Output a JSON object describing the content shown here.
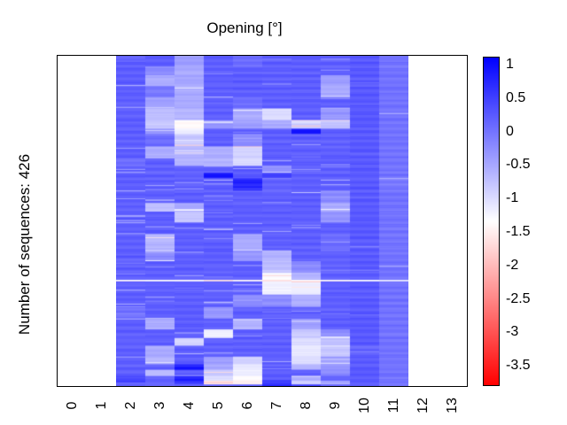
{
  "figure": {
    "background": "#ffffff"
  },
  "chart_data": {
    "type": "heatmap",
    "title": "Opening [°]",
    "ylabel": "Number of sequences: 426",
    "n_sequences": 426,
    "x_ticks": [
      "0",
      "1",
      "2",
      "3",
      "4",
      "5",
      "6",
      "7",
      "8",
      "9",
      "10",
      "11",
      "12",
      "13"
    ],
    "n_cols": 14,
    "data_col_start": 2,
    "data_col_count": 10,
    "grid": false,
    "legend_position": "right-colorbar",
    "colorbar": {
      "tick_labels": [
        "1",
        "0.5",
        "0",
        "-0.5",
        "-1",
        "-1.5",
        "-2",
        "-2.5",
        "-3",
        "-3.5"
      ],
      "tick_values": [
        1,
        0.5,
        0,
        -0.5,
        -1,
        -1.5,
        -2,
        -2.5,
        -3,
        -3.5
      ],
      "vmax": 1.1,
      "vmin": -3.79,
      "color_high": "#0000ff",
      "color_mid": "#ffffff",
      "color_low": "#ff0000"
    },
    "bands_note": "Downsampled heatmap values; each band = [row_count, values for columns 2..11] on the colorbar scale. Row counts sum to 426.",
    "bands": [
      [
        14,
        0.25,
        0.25,
        -0.4,
        0.25,
        0.1,
        0.25,
        0.25,
        0.25,
        0.3,
        0.05
      ],
      [
        11,
        0.25,
        -0.2,
        -0.5,
        0.25,
        0.25,
        0.25,
        0.25,
        0.25,
        0.3,
        0.05
      ],
      [
        14,
        0.25,
        -0.5,
        -0.45,
        0.25,
        0.25,
        0.25,
        0.25,
        -0.4,
        0.3,
        0.05
      ],
      [
        15,
        0.25,
        0.0,
        -0.5,
        0.25,
        0.25,
        0.25,
        0.25,
        -0.5,
        0.3,
        0.05
      ],
      [
        14,
        0.25,
        -0.4,
        -0.5,
        0.25,
        0.1,
        0.25,
        0.25,
        0.25,
        0.3,
        0.05
      ],
      [
        15,
        0.25,
        -0.7,
        -0.6,
        0.25,
        -0.5,
        -1.0,
        0.25,
        -0.3,
        0.3,
        0.05
      ],
      [
        11,
        0.25,
        -0.8,
        -1.4,
        -0.3,
        -0.4,
        -0.5,
        -0.8,
        -0.7,
        0.3,
        0.05
      ],
      [
        7,
        0.25,
        -0.3,
        -1.2,
        0.25,
        0.25,
        0.25,
        0.95,
        0.25,
        0.3,
        0.05
      ],
      [
        16,
        0.25,
        0.1,
        -0.8,
        0.25,
        -0.2,
        0.25,
        0.25,
        0.25,
        0.3,
        0.05
      ],
      [
        15,
        0.25,
        -0.5,
        -0.6,
        -0.55,
        -0.9,
        0.25,
        0.25,
        0.25,
        0.3,
        0.05
      ],
      [
        10,
        0.1,
        0.25,
        -0.6,
        -0.6,
        -1.0,
        0.25,
        0.25,
        0.25,
        0.3,
        0.05
      ],
      [
        9,
        0.25,
        0.25,
        0.2,
        0.25,
        0.3,
        -0.3,
        0.25,
        0.25,
        0.3,
        0.05
      ],
      [
        7,
        0.25,
        0.25,
        0.25,
        0.95,
        0.3,
        0.5,
        0.25,
        0.25,
        0.3,
        0.05
      ],
      [
        16,
        0.25,
        0.25,
        0.25,
        0.25,
        0.8,
        0.2,
        0.25,
        0.25,
        0.3,
        0.0
      ],
      [
        16,
        0.25,
        0.25,
        0.25,
        0.25,
        0.25,
        0.25,
        0.25,
        -0.2,
        0.3,
        0.05
      ],
      [
        11,
        0.25,
        -0.7,
        -0.5,
        0.25,
        0.25,
        0.25,
        0.25,
        -0.5,
        0.3,
        0.05
      ],
      [
        14,
        0.25,
        0.25,
        -0.8,
        0.25,
        0.25,
        0.25,
        0.25,
        -0.3,
        0.3,
        0.05
      ],
      [
        15,
        0.25,
        0.25,
        0.25,
        0.25,
        0.25,
        0.25,
        0.25,
        0.25,
        0.3,
        0.05
      ],
      [
        21,
        0.25,
        -0.6,
        0.25,
        0.25,
        -0.5,
        0.25,
        0.25,
        0.1,
        0.3,
        0.05
      ],
      [
        14,
        0.25,
        -0.2,
        0.25,
        0.25,
        -0.3,
        -0.6,
        0.25,
        0.25,
        0.3,
        0.05
      ],
      [
        15,
        0.25,
        0.25,
        0.25,
        0.25,
        0.25,
        -0.7,
        -0.2,
        0.25,
        0.3,
        0.05
      ],
      [
        9,
        0.25,
        0.25,
        0.25,
        0.25,
        0.25,
        -1.3,
        -0.6,
        0.25,
        0.3,
        0.05
      ],
      [
        2,
        -1.4,
        -1.4,
        -1.4,
        -1.6,
        -1.4,
        -1.7,
        -1.4,
        -1.4,
        -1.3,
        -1.2
      ],
      [
        17,
        0.25,
        0.25,
        0.25,
        0.25,
        0.25,
        -1.2,
        -1.2,
        0.25,
        0.3,
        0.05
      ],
      [
        16,
        0.25,
        0.25,
        0.25,
        0.25,
        -0.2,
        -0.2,
        -0.55,
        0.25,
        0.3,
        0.05
      ],
      [
        15,
        0.1,
        0.25,
        0.25,
        -0.3,
        0.25,
        0.25,
        0.25,
        0.25,
        0.3,
        0.05
      ],
      [
        14,
        0.25,
        -0.5,
        0.25,
        0.25,
        -0.6,
        0.25,
        -0.4,
        0.25,
        0.3,
        0.05
      ],
      [
        11,
        0.25,
        0.25,
        0.25,
        -1.2,
        0.25,
        0.25,
        -0.8,
        -0.2,
        0.3,
        0.05
      ],
      [
        10,
        0.25,
        0.25,
        -0.9,
        0.25,
        0.25,
        0.25,
        -1.0,
        -0.7,
        0.3,
        0.05
      ],
      [
        14,
        0.25,
        -0.5,
        0.25,
        0.25,
        0.25,
        0.25,
        -1.1,
        -0.8,
        0.2,
        0.05
      ],
      [
        10,
        0.25,
        -0.6,
        0.25,
        -0.4,
        -0.9,
        0.25,
        -1.0,
        -0.4,
        0.3,
        0.05
      ],
      [
        7,
        0.25,
        0.25,
        0.9,
        -0.5,
        -1.1,
        0.25,
        -0.6,
        -0.3,
        0.3,
        0.05
      ],
      [
        8,
        0.25,
        -0.7,
        0.3,
        -0.8,
        -1.2,
        0.25,
        0.25,
        -0.2,
        0.3,
        0.05
      ],
      [
        6,
        0.5,
        0.25,
        0.9,
        -1.0,
        -1.4,
        0.3,
        -0.5,
        0.25,
        0.3,
        0.05
      ],
      [
        5,
        0.5,
        0.2,
        0.6,
        -1.6,
        -1.5,
        0.7,
        -0.9,
        -0.5,
        0.3,
        0.05
      ],
      [
        2,
        0.25,
        0.25,
        0.25,
        0.25,
        0.25,
        0.9,
        0.6,
        0.25,
        0.3,
        0.05
      ]
    ],
    "texture": {
      "row_noise": 0.07,
      "streak_prob": 0.035,
      "streak_strength": 0.75,
      "col_streak_scale": [
        1,
        1,
        1,
        1,
        1,
        1,
        1,
        1,
        0.3,
        0.3
      ],
      "seed": 7
    }
  }
}
